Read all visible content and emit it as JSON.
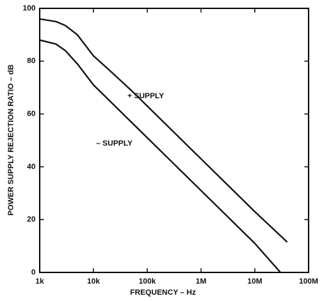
{
  "chart_data": {
    "type": "line",
    "x_label": "FREQUENCY – Hz",
    "y_label": "POWER SUPPLY REJECTION RATIO – dB",
    "xscale": "log",
    "xlim": [
      1000,
      100000000
    ],
    "xticks": [
      {
        "value": 1000,
        "label": "1k"
      },
      {
        "value": 10000,
        "label": "10k"
      },
      {
        "value": 100000,
        "label": "100k"
      },
      {
        "value": 1000000,
        "label": "1M"
      },
      {
        "value": 10000000,
        "label": "10M"
      },
      {
        "value": 100000000,
        "label": "100M"
      }
    ],
    "ylim": [
      0,
      100
    ],
    "yticks": [
      0,
      20,
      40,
      60,
      80,
      100
    ],
    "grid": false,
    "series": [
      {
        "name": "+ SUPPLY",
        "color": "#111111",
        "x": [
          1000,
          2000,
          3000,
          5000,
          10000,
          20000,
          50000,
          100000,
          1000000,
          10000000,
          40000000
        ],
        "values": [
          96,
          95,
          93.5,
          90,
          82,
          76.5,
          69,
          63,
          43,
          23,
          11.5
        ]
      },
      {
        "name": "– SUPPLY",
        "color": "#111111",
        "x": [
          1000,
          2000,
          3000,
          5000,
          10000,
          20000,
          100000,
          1000000,
          10000000,
          30000000
        ],
        "values": [
          88,
          86.5,
          84,
          79,
          71,
          65,
          51,
          31,
          11,
          0
        ]
      }
    ]
  }
}
